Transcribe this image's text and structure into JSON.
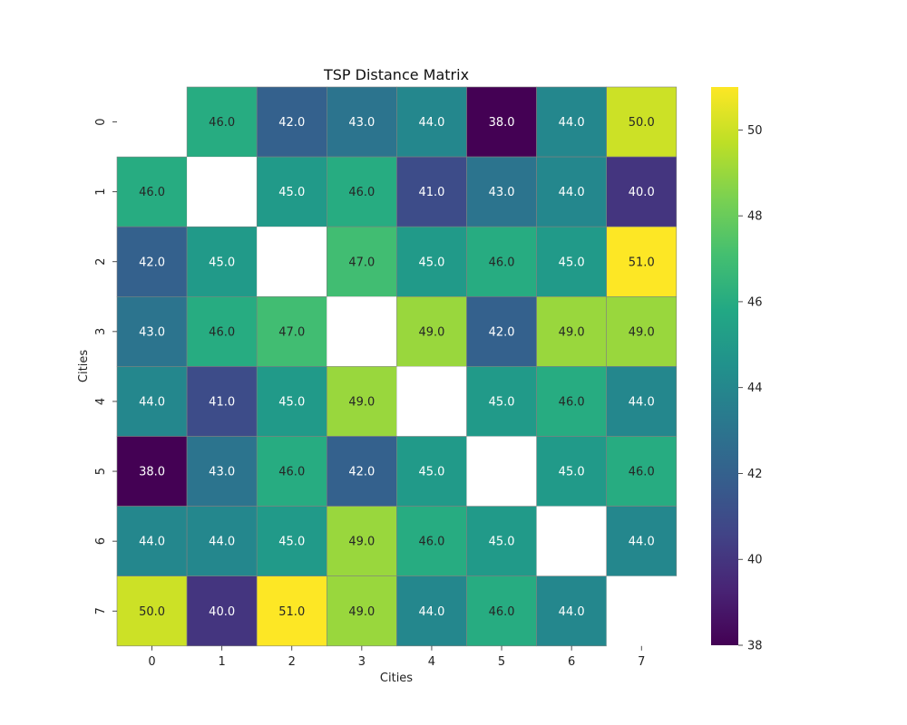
{
  "chart_data": {
    "type": "heatmap",
    "title": "TSP Distance Matrix",
    "xlabel": "Cities",
    "ylabel": "Cities",
    "x_categories": [
      "0",
      "1",
      "2",
      "3",
      "4",
      "5",
      "6",
      "7"
    ],
    "y_categories": [
      "0",
      "1",
      "2",
      "3",
      "4",
      "5",
      "6",
      "7"
    ],
    "values": [
      [
        null,
        46,
        42,
        43,
        44,
        38,
        44,
        50
      ],
      [
        46,
        null,
        45,
        46,
        41,
        43,
        44,
        40
      ],
      [
        42,
        45,
        null,
        47,
        45,
        46,
        45,
        51
      ],
      [
        43,
        46,
        47,
        null,
        49,
        42,
        49,
        49
      ],
      [
        44,
        41,
        45,
        49,
        null,
        45,
        46,
        44
      ],
      [
        38,
        43,
        46,
        42,
        45,
        null,
        45,
        46
      ],
      [
        44,
        44,
        45,
        49,
        46,
        45,
        null,
        44
      ],
      [
        50,
        40,
        51,
        49,
        44,
        46,
        44,
        null
      ]
    ],
    "value_format": "0.0",
    "colormap": "viridis",
    "colorbar": {
      "range": [
        38,
        51
      ],
      "ticks": [
        38,
        40,
        42,
        44,
        46,
        48,
        50
      ]
    },
    "cell_edge_color": "#808080",
    "masked_cell_color": "#ffffff"
  }
}
